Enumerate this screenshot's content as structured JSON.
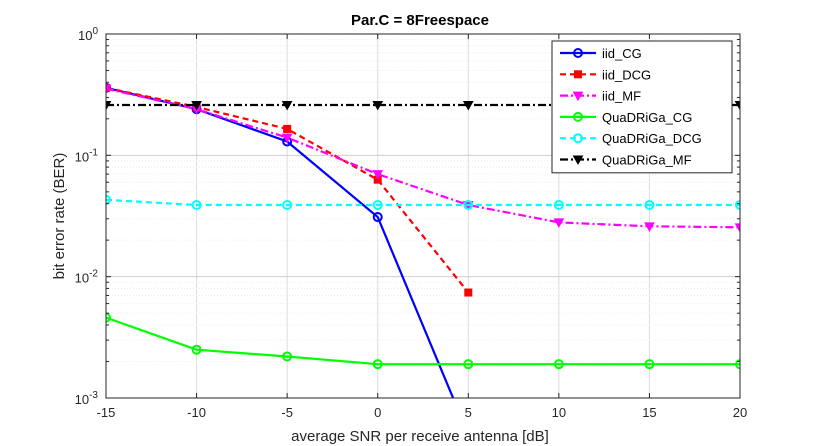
{
  "chart_data": {
    "type": "line",
    "title": "Par.C = 8Freespace",
    "xlabel": "average SNR per receive antenna [dB]",
    "ylabel": "bit error rate (BER)",
    "xlim": [
      -15,
      20
    ],
    "ylim": [
      0.001,
      1
    ],
    "yscale": "log",
    "grid": true,
    "legend_position": "top-right",
    "x_ticks": [
      "-15",
      "-10",
      "-5",
      "0",
      "5",
      "10",
      "15",
      "20"
    ],
    "y_ticks": [
      {
        "base": "10",
        "exp": "0"
      },
      {
        "base": "10",
        "exp": "-1"
      },
      {
        "base": "10",
        "exp": "-2"
      },
      {
        "base": "10",
        "exp": "-3"
      }
    ],
    "series": [
      {
        "name": "iid_CG",
        "color": "#0000ff",
        "dash": "solid",
        "marker": "circle",
        "x": [
          -15,
          -10,
          -5,
          0,
          5
        ],
        "y": [
          0.36,
          0.24,
          0.13,
          0.031,
          0.0005
        ]
      },
      {
        "name": "iid_DCG",
        "color": "#ff0000",
        "dash": "dashed",
        "marker": "square",
        "x": [
          -15,
          -10,
          -5,
          0,
          5
        ],
        "y": [
          0.36,
          0.25,
          0.165,
          0.063,
          0.0074
        ]
      },
      {
        "name": "iid_MF",
        "color": "#ff00ff",
        "dash": "dashdot",
        "marker": "triangle-down",
        "x": [
          -15,
          -10,
          -5,
          0,
          5,
          10,
          15,
          20
        ],
        "y": [
          0.355,
          0.24,
          0.14,
          0.07,
          0.039,
          0.028,
          0.026,
          0.0255
        ]
      },
      {
        "name": "QuaDRiGa_CG",
        "color": "#00ff00",
        "dash": "solid",
        "marker": "circle",
        "x": [
          -15,
          -10,
          -5,
          0,
          5,
          10,
          15,
          20
        ],
        "y": [
          0.0046,
          0.0025,
          0.0022,
          0.0019,
          0.0019,
          0.0019,
          0.0019,
          0.0019
        ]
      },
      {
        "name": "QuaDRiGa_DCG",
        "color": "#00ffff",
        "dash": "dashed",
        "marker": "circle",
        "x": [
          -15,
          -10,
          -5,
          0,
          5,
          10,
          15,
          20
        ],
        "y": [
          0.043,
          0.039,
          0.039,
          0.039,
          0.039,
          0.039,
          0.039,
          0.039
        ]
      },
      {
        "name": "QuaDRiGa_MF",
        "color": "#000000",
        "dash": "dashdot",
        "marker": "triangle-down",
        "x": [
          -15,
          -10,
          -5,
          0,
          5,
          10,
          15,
          20
        ],
        "y": [
          0.26,
          0.26,
          0.26,
          0.26,
          0.26,
          0.26,
          0.26,
          0.26
        ]
      }
    ]
  }
}
